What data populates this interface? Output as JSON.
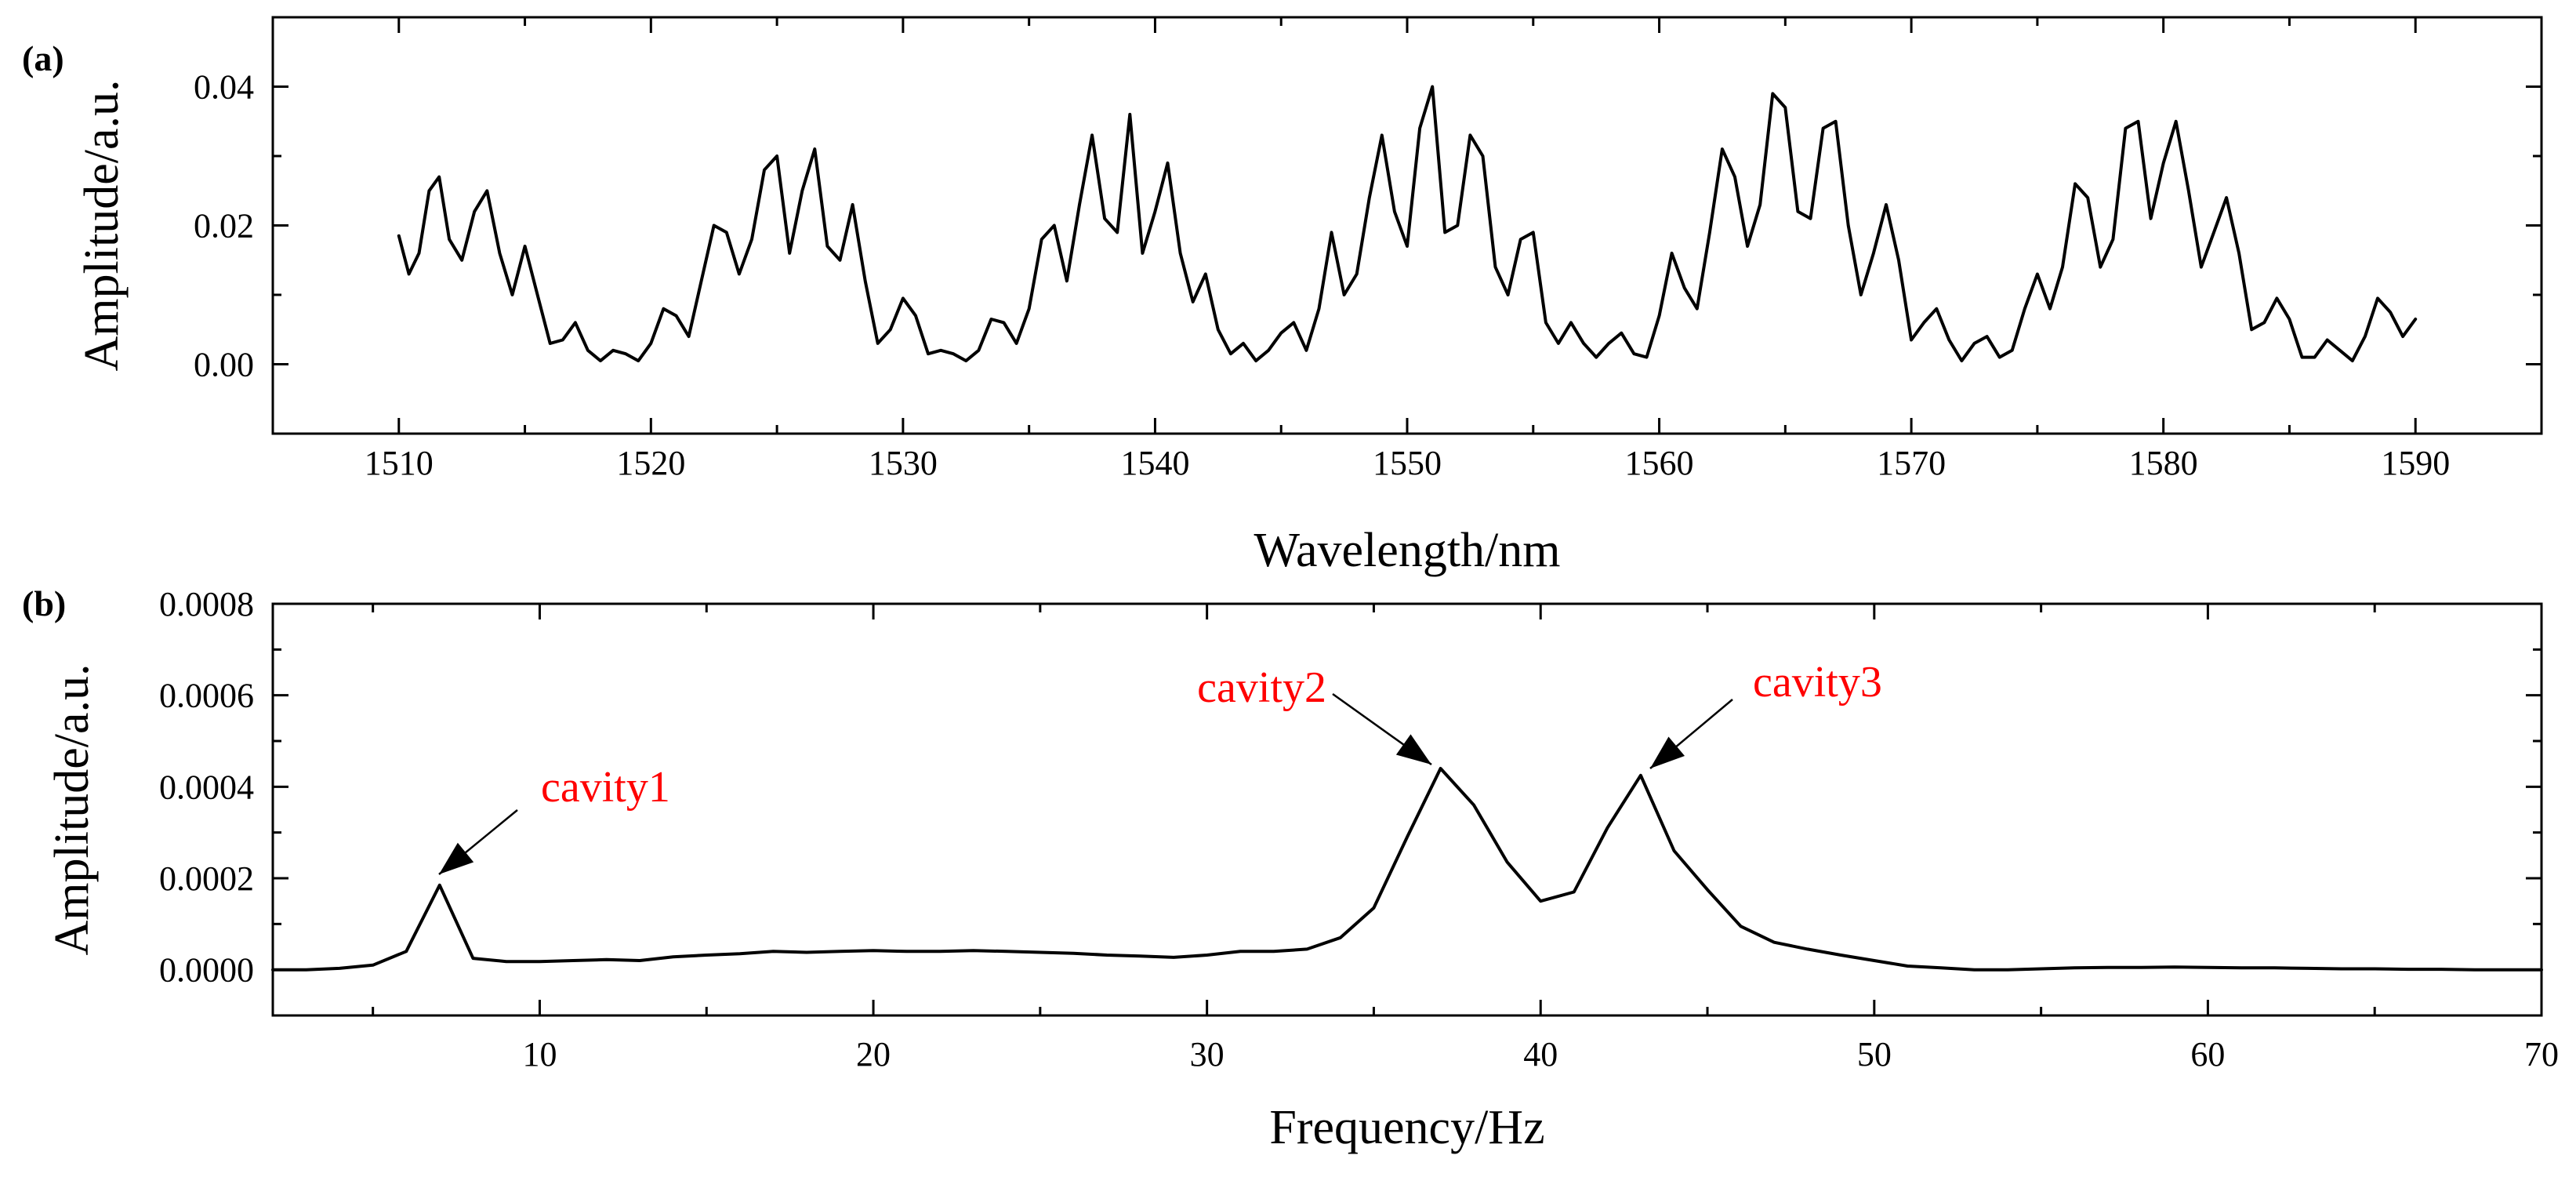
{
  "chart_data": [
    {
      "panel_label": "(a)",
      "type": "line",
      "xlabel": "Wavelength/nm",
      "ylabel": "Amplitude/a.u.",
      "xlim": [
        1505,
        1595
      ],
      "ylim": [
        -0.01,
        0.05
      ],
      "xticks": [
        "1510",
        "1520",
        "1530",
        "1540",
        "1550",
        "1560",
        "1570",
        "1580",
        "1590"
      ],
      "yticks": [
        "0.00",
        "0.02",
        "0.04"
      ],
      "grid": false,
      "series": [
        {
          "name": "spectrum",
          "x": [
            1510.0,
            1510.4,
            1510.8,
            1511.2,
            1511.6,
            1512.0,
            1512.5,
            1513.0,
            1513.5,
            1514.0,
            1514.5,
            1515.0,
            1515.5,
            1516.0,
            1516.5,
            1517.0,
            1517.5,
            1518.0,
            1518.5,
            1519.0,
            1519.5,
            1520.0,
            1520.5,
            1521.0,
            1521.5,
            1522.0,
            1522.5,
            1523.0,
            1523.5,
            1524.0,
            1524.5,
            1525.0,
            1525.5,
            1526.0,
            1526.5,
            1527.0,
            1527.5,
            1528.0,
            1528.5,
            1529.0,
            1529.5,
            1530.0,
            1530.5,
            1531.0,
            1531.5,
            1532.0,
            1532.5,
            1533.0,
            1533.5,
            1534.0,
            1534.5,
            1535.0,
            1535.5,
            1536.0,
            1536.5,
            1537.0,
            1537.5,
            1538.0,
            1538.5,
            1539.0,
            1539.5,
            1540.0,
            1540.5,
            1541.0,
            1541.5,
            1542.0,
            1542.5,
            1543.0,
            1543.5,
            1544.0,
            1544.5,
            1545.0,
            1545.5,
            1546.0,
            1546.5,
            1547.0,
            1547.5,
            1548.0,
            1548.5,
            1549.0,
            1549.5,
            1550.0,
            1550.5,
            1551.0,
            1551.5,
            1552.0,
            1552.5,
            1553.0,
            1553.5,
            1554.0,
            1554.5,
            1555.0,
            1555.5,
            1556.0,
            1556.5,
            1557.0,
            1557.5,
            1558.0,
            1558.5,
            1559.0,
            1559.5,
            1560.0,
            1560.5,
            1561.0,
            1561.5,
            1562.0,
            1562.5,
            1563.0,
            1563.5,
            1564.0,
            1564.5,
            1565.0,
            1565.5,
            1566.0,
            1566.5,
            1567.0,
            1567.5,
            1568.0,
            1568.5,
            1569.0,
            1569.5,
            1570.0,
            1570.5,
            1571.0,
            1571.5,
            1572.0,
            1572.5,
            1573.0,
            1573.5,
            1574.0,
            1574.5,
            1575.0,
            1575.5,
            1576.0,
            1576.5,
            1577.0,
            1577.5,
            1578.0,
            1578.5,
            1579.0,
            1579.5,
            1580.0,
            1580.5,
            1581.0,
            1581.5,
            1582.0,
            1582.5,
            1583.0,
            1583.5,
            1584.0,
            1584.5,
            1585.0,
            1585.5,
            1586.0,
            1586.5,
            1587.0,
            1587.5,
            1588.0,
            1588.5,
            1589.0,
            1589.5,
            1590.0
          ],
          "y": [
            0.0185,
            0.013,
            0.016,
            0.025,
            0.027,
            0.018,
            0.015,
            0.022,
            0.025,
            0.016,
            0.01,
            0.017,
            0.01,
            0.003,
            0.0035,
            0.006,
            0.002,
            0.0005,
            0.002,
            0.0015,
            0.0005,
            0.003,
            0.008,
            0.007,
            0.004,
            0.012,
            0.02,
            0.019,
            0.013,
            0.018,
            0.028,
            0.03,
            0.016,
            0.025,
            0.031,
            0.017,
            0.015,
            0.023,
            0.012,
            0.003,
            0.005,
            0.0095,
            0.007,
            0.0015,
            0.002,
            0.0015,
            0.0005,
            0.002,
            0.0065,
            0.006,
            0.003,
            0.008,
            0.018,
            0.02,
            0.012,
            0.023,
            0.033,
            0.021,
            0.019,
            0.036,
            0.016,
            0.022,
            0.029,
            0.016,
            0.009,
            0.013,
            0.005,
            0.0015,
            0.003,
            0.0005,
            0.002,
            0.0045,
            0.006,
            0.002,
            0.008,
            0.019,
            0.01,
            0.013,
            0.024,
            0.033,
            0.022,
            0.017,
            0.034,
            0.04,
            0.019,
            0.02,
            0.033,
            0.03,
            0.014,
            0.01,
            0.018,
            0.019,
            0.006,
            0.003,
            0.006,
            0.003,
            0.001,
            0.003,
            0.0045,
            0.0015,
            0.001,
            0.007,
            0.016,
            0.011,
            0.008,
            0.019,
            0.031,
            0.027,
            0.017,
            0.023,
            0.039,
            0.037,
            0.022,
            0.021,
            0.034,
            0.035,
            0.02,
            0.01,
            0.016,
            0.023,
            0.015,
            0.0035,
            0.006,
            0.008,
            0.0035,
            0.0005,
            0.003,
            0.004,
            0.001,
            0.002,
            0.008,
            0.013,
            0.008,
            0.014,
            0.026,
            0.024,
            0.014,
            0.018,
            0.034,
            0.035,
            0.021,
            0.029,
            0.035,
            0.025,
            0.014,
            0.019,
            0.024,
            0.016,
            0.005,
            0.006,
            0.0095,
            0.0065,
            0.001,
            0.001,
            0.0035,
            0.002,
            0.0005,
            0.004,
            0.0095,
            0.0075,
            0.004,
            0.0065
          ]
        }
      ]
    },
    {
      "panel_label": "(b)",
      "type": "line",
      "xlabel": "Frequency/Hz",
      "ylabel": "Amplitude/a.u.",
      "xlim": [
        2,
        70
      ],
      "ylim": [
        -0.0001,
        0.0008
      ],
      "xticks": [
        "10",
        "20",
        "30",
        "40",
        "50",
        "60",
        "70"
      ],
      "yticks": [
        "0.0000",
        "0.0002",
        "0.0004",
        "0.0006",
        "0.0008"
      ],
      "grid": false,
      "series": [
        {
          "name": "spectrum",
          "x": [
            2,
            3,
            4,
            5,
            6,
            7,
            8,
            9,
            10,
            11,
            12,
            13,
            14,
            15,
            16,
            17,
            18,
            19,
            20,
            21,
            22,
            23,
            24,
            25,
            26,
            27,
            28,
            29,
            30,
            31,
            32,
            33,
            34,
            35,
            36,
            37,
            38,
            39,
            40,
            41,
            42,
            43,
            44,
            45,
            46,
            47,
            48,
            49,
            50,
            51,
            52,
            53,
            54,
            55,
            56,
            57,
            58,
            59,
            60,
            61,
            62,
            63,
            64,
            65,
            66,
            67,
            68,
            69,
            70
          ],
          "y": [
            0.0,
            0.0,
            3e-06,
            1e-05,
            4e-05,
            0.000185,
            2.5e-05,
            1.8e-05,
            1.8e-05,
            2e-05,
            2.2e-05,
            2e-05,
            2.8e-05,
            3.2e-05,
            3.5e-05,
            4e-05,
            3.8e-05,
            4e-05,
            4.2e-05,
            4e-05,
            4e-05,
            4.2e-05,
            4e-05,
            3.8e-05,
            3.6e-05,
            3.2e-05,
            3e-05,
            2.7e-05,
            3.2e-05,
            4e-05,
            4e-05,
            4.5e-05,
            7e-05,
            0.000135,
            0.00029,
            0.00044,
            0.00036,
            0.000235,
            0.00015,
            0.00017,
            0.00031,
            0.000425,
            0.00026,
            0.000175,
            9.5e-05,
            6e-05,
            4.5e-05,
            3.2e-05,
            2e-05,
            8e-06,
            4e-06,
            0.0,
            0.0,
            2e-06,
            4e-06,
            5e-06,
            5e-06,
            6e-06,
            5e-06,
            4e-06,
            4e-06,
            3e-06,
            2e-06,
            2e-06,
            1e-06,
            1e-06,
            0.0,
            0.0,
            0.0
          ]
        }
      ],
      "annotations": [
        {
          "text": "cavity1",
          "x": 7,
          "y": 0.000185,
          "color": "#ff0000"
        },
        {
          "text": "cavity2",
          "x": 37,
          "y": 0.00044,
          "color": "#ff0000"
        },
        {
          "text": "cavity3",
          "x": 43,
          "y": 0.000425,
          "color": "#ff0000"
        }
      ]
    }
  ]
}
